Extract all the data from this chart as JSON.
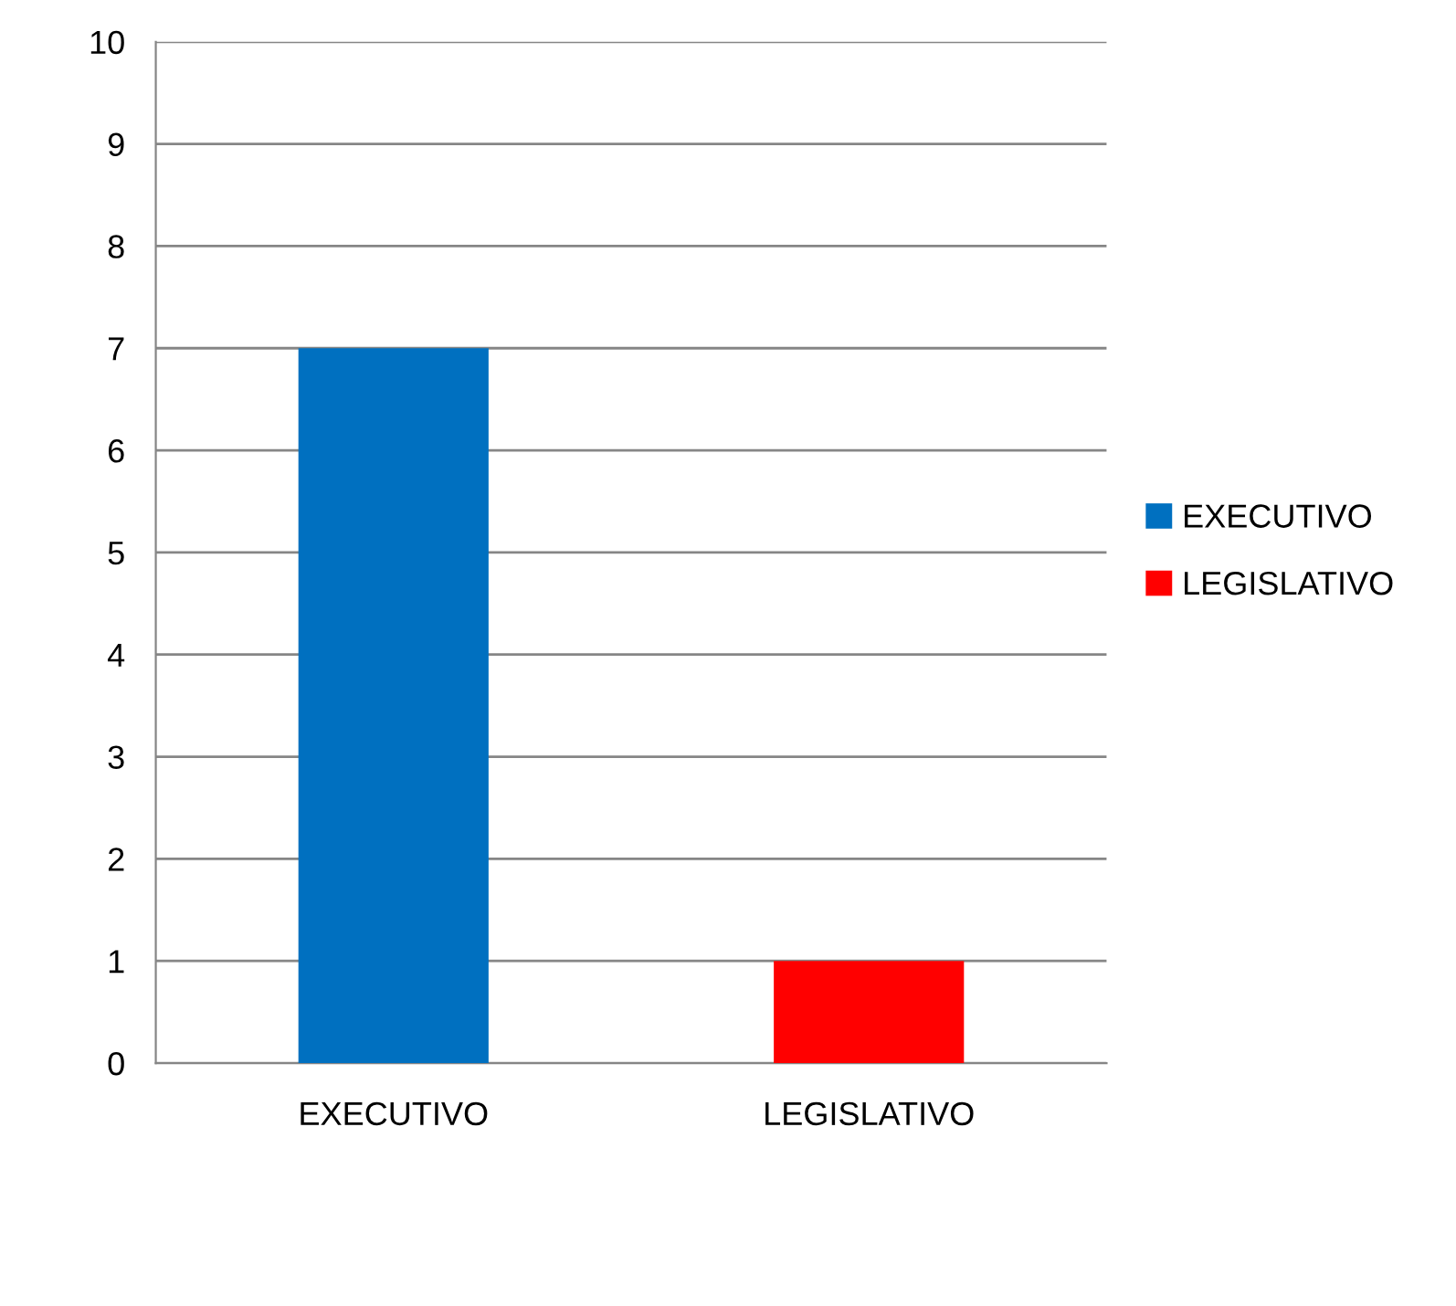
{
  "chart_data": {
    "type": "bar",
    "categories": [
      "EXECUTIVO",
      "LEGISLATIVO"
    ],
    "series": [
      {
        "name": "EXECUTIVO",
        "color": "#0070c0",
        "values": [
          7,
          null
        ]
      },
      {
        "name": "LEGISLATIVO",
        "color": "#ff0000",
        "values": [
          null,
          1
        ]
      }
    ],
    "ylim": [
      0,
      10
    ],
    "yticks": [
      0,
      1,
      2,
      3,
      4,
      5,
      6,
      7,
      8,
      9,
      10
    ],
    "grid": "y",
    "legend": "right"
  }
}
